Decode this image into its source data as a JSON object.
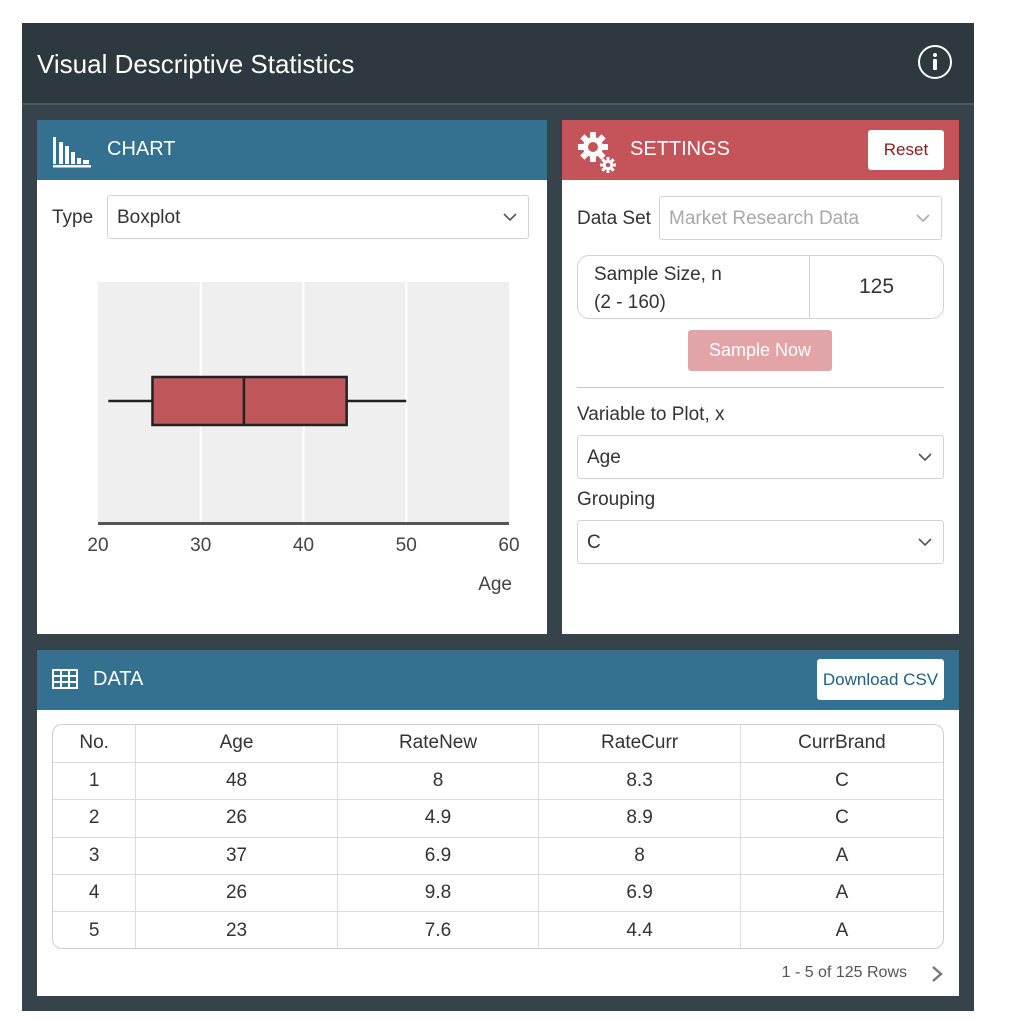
{
  "app": {
    "title": "Visual Descriptive Statistics",
    "info_icon": "info-circle-icon"
  },
  "chart_panel": {
    "title": "CHART",
    "icon": "bar-chart-icon",
    "type_label": "Type",
    "type_value": "Boxplot"
  },
  "settings": {
    "title": "SETTINGS",
    "icon": "gears-icon",
    "reset_label": "Reset",
    "dataset_label": "Data Set",
    "dataset_value": "Market Research Data",
    "sample_size_line1": "Sample Size, n",
    "sample_size_line2": "(2 - 160)",
    "sample_size_value": "125",
    "sample_now_label": "Sample Now",
    "variable_label": "Variable to Plot, x",
    "variable_value": "Age",
    "grouping_label": "Grouping",
    "grouping_value": "C"
  },
  "chart_data": {
    "type": "boxplot",
    "orientation": "horizontal",
    "xlabel": "Age",
    "xlim": [
      20,
      60
    ],
    "ticks": [
      20,
      30,
      40,
      50,
      60
    ],
    "grid": true,
    "box": {
      "whisker_low": 21,
      "q1": 25.3,
      "median": 34.2,
      "q3": 44.2,
      "whisker_high": 50
    },
    "fill_color": "#c0575a",
    "background_color": "#efefef"
  },
  "data_panel": {
    "title": "DATA",
    "icon": "table-icon",
    "download_label": "Download CSV",
    "columns": [
      "No.",
      "Age",
      "RateNew",
      "RateCurr",
      "CurrBrand"
    ],
    "rows": [
      [
        "1",
        "48",
        "8",
        "8.3",
        "C"
      ],
      [
        "2",
        "26",
        "4.9",
        "8.9",
        "C"
      ],
      [
        "3",
        "37",
        "6.9",
        "8",
        "A"
      ],
      [
        "4",
        "26",
        "9.8",
        "6.9",
        "A"
      ],
      [
        "5",
        "23",
        "7.6",
        "4.4",
        "A"
      ]
    ],
    "pager_text": "1 - 5 of 125 Rows"
  },
  "colors": {
    "header_blue": "#34708f",
    "header_red": "#c4545a",
    "app_bg": "#36434a",
    "title_bg": "#2e393f"
  }
}
